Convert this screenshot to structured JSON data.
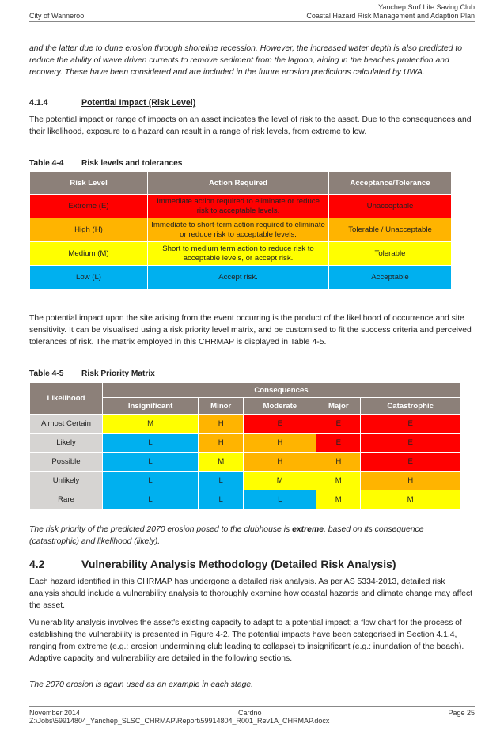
{
  "header": {
    "left": "City of Wanneroo",
    "right_line1": "Yanchep Surf Life Saving Club",
    "right_line2": "Coastal Hazard Risk Management and Adaption Plan"
  },
  "intro_italic": "and the latter due to dune erosion through shoreline recession. However, the increased water depth is also predicted to reduce the ability of wave driven currents to remove sediment from the lagoon, aiding in the beaches protection and recovery. These have been considered and are included in the future erosion predictions calculated by UWA.",
  "section_414": {
    "number": "4.1.4",
    "title": "Potential Impact (Risk Level)",
    "body": "The potential impact or range of impacts on an asset indicates the level of risk to the asset. Due to the consequences and their likelihood, exposure to a hazard can result in a range of risk levels, from extreme to low."
  },
  "table44": {
    "caption_num": "Table 4-4",
    "caption_title": "Risk levels and tolerances",
    "headers": [
      "Risk Level",
      "Action Required",
      "Acceptance/Tolerance"
    ],
    "rows": [
      {
        "level": "Extreme (E)",
        "action": "Immediate action required to eliminate or reduce risk to acceptable levels.",
        "tolerance": "Unacceptable",
        "color": "#ff0000"
      },
      {
        "level": "High (H)",
        "action": "Immediate to short-term action required to eliminate or reduce risk to acceptable levels.",
        "tolerance": "Tolerable / Unacceptable",
        "color": "#ffb400"
      },
      {
        "level": "Medium (M)",
        "action": "Short to medium term action to reduce risk to acceptable levels, or accept risk.",
        "tolerance": "Tolerable",
        "color": "#ffff00"
      },
      {
        "level": "Low (L)",
        "action": "Accept risk.",
        "tolerance": "Acceptable",
        "color": "#00b0ef"
      }
    ]
  },
  "matrix_para": "The potential impact upon the site arising from the event occurring is the product of the likelihood of occurrence and site sensitivity. It can be visualised using a risk priority level matrix, and be customised to fit the success criteria and perceived tolerances of risk. The matrix employed in this CHRMAP is displayed in Table 4-5.",
  "table45": {
    "caption_num": "Table 4-5",
    "caption_title": "Risk Priority Matrix",
    "likelihood_label": "Likelihood",
    "consequences_label": "Consequences",
    "columns": [
      "Insignificant",
      "Minor",
      "Moderate",
      "Major",
      "Catastrophic"
    ],
    "rows": [
      {
        "label": "Almost Certain",
        "cells": [
          "M",
          "H",
          "E",
          "E",
          "E"
        ]
      },
      {
        "label": "Likely",
        "cells": [
          "L",
          "H",
          "H",
          "E",
          "E"
        ]
      },
      {
        "label": "Possible",
        "cells": [
          "L",
          "M",
          "H",
          "H",
          "E"
        ]
      },
      {
        "label": "Unlikely",
        "cells": [
          "L",
          "L",
          "M",
          "M",
          "H"
        ]
      },
      {
        "label": "Rare",
        "cells": [
          "L",
          "L",
          "L",
          "M",
          "M"
        ]
      }
    ],
    "colors": {
      "E": "#ff0000",
      "H": "#ffb400",
      "M": "#ffff00",
      "L": "#00b0ef"
    }
  },
  "risk_note": {
    "before": "The risk priority of the predicted 2070 erosion posed to the clubhouse is ",
    "bold": "extreme",
    "after": ", based on its consequence (catastrophic) and likelihood (likely)."
  },
  "section_42": {
    "number": "4.2",
    "title": "Vulnerability Analysis Methodology (Detailed Risk Analysis)",
    "para1": "Each hazard identified in this CHRMAP has undergone a detailed risk analysis. As per AS 5334-2013, detailed risk analysis should include a vulnerability analysis to thoroughly examine how coastal hazards and climate change may affect the asset.",
    "para2": "Vulnerability analysis involves the asset's existing capacity to adapt to a potential impact; a flow chart for the process of establishing the vulnerability is presented in Figure 4-2. The potential impacts have been categorised in Section 4.1.4, ranging from extreme (e.g.: erosion undermining club leading to collapse) to insignificant (e.g.: inundation of the beach). Adaptive capacity and vulnerability are detailed in the following sections.",
    "para3": "The 2070 erosion is again used as an example in each stage."
  },
  "footer": {
    "date": "November 2014",
    "company": "Cardno",
    "page": "Page 25",
    "path": "Z:\\Jobs\\59914804_Yanchep_SLSC_CHRMAP\\Report\\59914804_R001_Rev1A_CHRMAP.docx"
  }
}
